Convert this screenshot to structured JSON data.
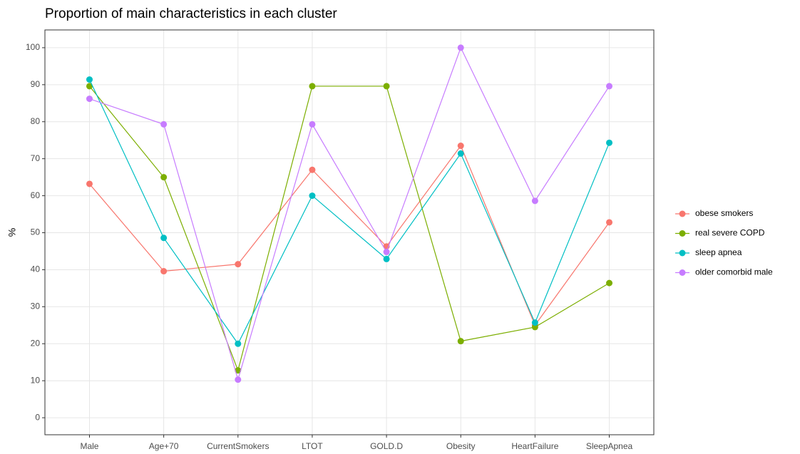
{
  "chart_data": {
    "type": "line",
    "title": "Proportion of main characteristics in each cluster",
    "ylabel": "%",
    "categories": [
      "Male",
      "Age+70",
      "CurrentSmokers",
      "LTOT",
      "GOLD.D",
      "Obesity",
      "HeartFailure",
      "SleepApnea"
    ],
    "series": [
      {
        "name": "obese smokers",
        "color": "#F8766D",
        "values": [
          63.2,
          39.6,
          41.5,
          67,
          46.3,
          73.5,
          25,
          52.8
        ]
      },
      {
        "name": "real severe COPD",
        "color": "#7CAE00",
        "values": [
          89.6,
          65,
          12.8,
          89.6,
          89.6,
          20.7,
          24.5,
          36.4
        ]
      },
      {
        "name": "sleep apnea",
        "color": "#00BFC4",
        "values": [
          91.4,
          48.6,
          20,
          60,
          42.9,
          71.4,
          25.7,
          74.3
        ]
      },
      {
        "name": "older comorbid male",
        "color": "#C77CFF",
        "values": [
          86.2,
          79.3,
          10.3,
          79.3,
          44.8,
          100,
          58.6,
          89.6
        ]
      }
    ],
    "ylim": [
      -4.6,
      104.8
    ],
    "yticks": [
      0,
      10,
      20,
      30,
      40,
      50,
      60,
      70,
      80,
      90,
      100
    ],
    "grid": true,
    "legend": "right"
  }
}
